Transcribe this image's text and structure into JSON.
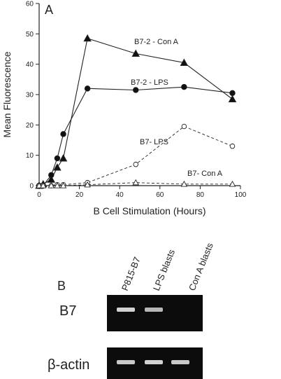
{
  "chart_data": {
    "type": "line",
    "panel_label": "A",
    "xlabel": "B Cell Stimulation (Hours)",
    "ylabel": "Mean Fluorescence",
    "xlim": [
      0,
      100
    ],
    "ylim": [
      0,
      60
    ],
    "xticks": [
      "0",
      "20",
      "40",
      "60",
      "80",
      "100"
    ],
    "yticks": [
      "0",
      "10",
      "20",
      "30",
      "40",
      "50",
      "60"
    ],
    "grid": false,
    "series": [
      {
        "name": "B7-2 - Con A",
        "marker": "filled-triangle",
        "line": "solid",
        "x": [
          0,
          2,
          6,
          9,
          12,
          24,
          48,
          72,
          96
        ],
        "y": [
          0,
          0.5,
          2,
          6,
          9,
          48.5,
          43.5,
          40.5,
          28.5
        ]
      },
      {
        "name": "B7-2 - LPS",
        "marker": "filled-circle",
        "line": "solid",
        "x": [
          0,
          2,
          6,
          9,
          12,
          24,
          48,
          72,
          96
        ],
        "y": [
          0,
          0,
          3.5,
          9,
          17,
          32,
          31.5,
          32.5,
          30.5
        ]
      },
      {
        "name": "B7- LPS",
        "marker": "open-circle",
        "line": "dashed",
        "x": [
          0,
          2,
          6,
          9,
          12,
          24,
          48,
          72,
          96
        ],
        "y": [
          0,
          0,
          0,
          0.3,
          0.3,
          1,
          7,
          19.5,
          13
        ]
      },
      {
        "name": "B7- Con A",
        "marker": "open-triangle",
        "line": "dashed",
        "x": [
          0,
          2,
          6,
          9,
          12,
          24,
          48,
          72,
          96
        ],
        "y": [
          0,
          0,
          0,
          0,
          0,
          0.3,
          1,
          0.5,
          0.5
        ]
      }
    ]
  },
  "gel": {
    "panel_label": "B",
    "lanes": [
      "P815-B7",
      "LPS blasts",
      "Con A blasts"
    ],
    "rows": [
      {
        "label": "B7",
        "bands": [
          0.9,
          0.75,
          0.0
        ]
      },
      {
        "label": "β-actin",
        "bands": [
          0.85,
          0.9,
          0.85
        ]
      }
    ]
  }
}
